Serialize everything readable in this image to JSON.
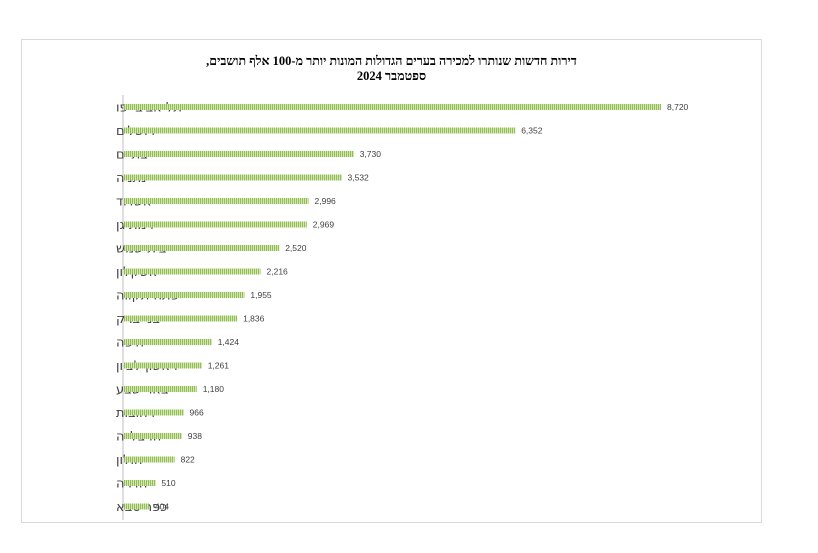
{
  "chart_data": {
    "type": "bar",
    "orientation": "horizontal",
    "title_line1": "דירות חדשות שנותרו למכירה בערים הגדולות המונות יותר מ-100 אלף תושבים,",
    "title_line2": "ספטמבר 2024",
    "categories": [
      "תל אביב-יפו",
      "ירושלים",
      "בת ים",
      "נתניה",
      "אשדוד",
      "רמת גן",
      "בית שמש",
      "אשקלון",
      "פתח תקווה",
      "בני ברק",
      "חיפה",
      "ראשון לציון",
      "באר שבע",
      "רחובות",
      "הרצלייה",
      "חולון",
      "חדרה",
      "כפר סבא"
    ],
    "values": [
      8720,
      6352,
      3730,
      3532,
      2996,
      2969,
      2520,
      2216,
      1955,
      1836,
      1424,
      1261,
      1180,
      966,
      938,
      822,
      510,
      404
    ],
    "value_labels": [
      "8,720",
      "6,352",
      "3,730",
      "3,532",
      "2,996",
      "2,969",
      "2,520",
      "2,216",
      "1,955",
      "1,836",
      "1,424",
      "1,261",
      "1,180",
      "966",
      "938",
      "822",
      "510",
      "404"
    ],
    "xlim": [
      0,
      8720
    ],
    "grid": false,
    "legend": "none",
    "bar_color": "#92c050",
    "bar_stripe_color": "#ffffff"
  }
}
